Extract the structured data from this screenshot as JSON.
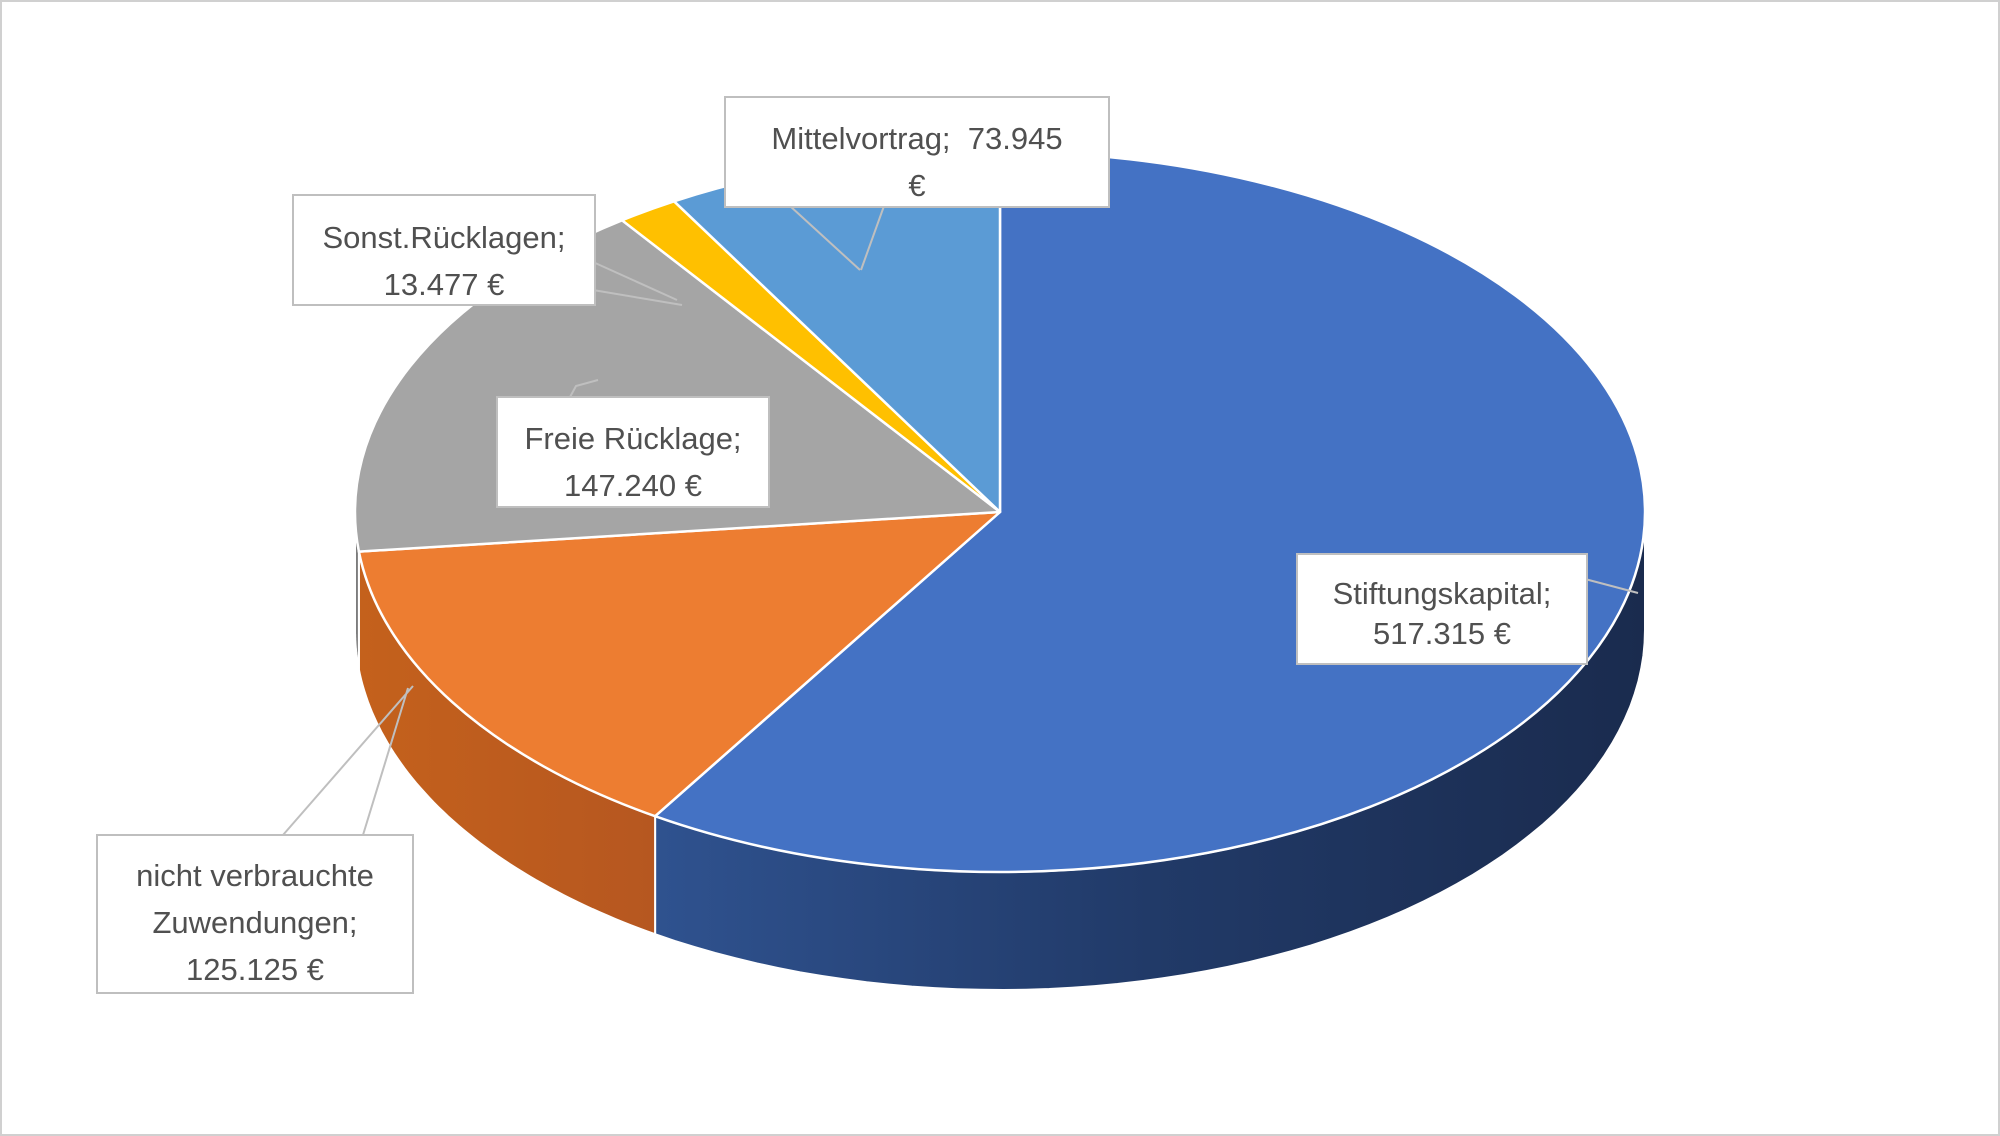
{
  "chart_data": {
    "type": "pie",
    "subtype": "3d-pie",
    "categories": [
      "Stiftungskapital",
      "nicht verbrauchte Zuwendungen",
      "Freie Rücklage",
      "Sonst.Rücklagen",
      "Mittelvortrag"
    ],
    "values": [
      517315,
      125125,
      147240,
      13477,
      73945
    ],
    "unit": "€",
    "colors": [
      "#4472c4",
      "#ed7d31",
      "#a5a5a5",
      "#ffc000",
      "#5b9bd5"
    ],
    "legend": "none",
    "data_labels": [
      {
        "lines": [
          "Stiftungskapital;",
          "517.315 €"
        ]
      },
      {
        "lines": [
          "nicht verbrauchte",
          "Zuwendungen;",
          "125.125 €"
        ]
      },
      {
        "lines": [
          "Freie Rücklage;",
          "147.240 €"
        ]
      },
      {
        "lines": [
          "Sonst.Rücklagen;",
          "13.477 €"
        ]
      },
      {
        "lines": [
          "Mittelvortrag;  73.945",
          "€"
        ]
      }
    ]
  }
}
